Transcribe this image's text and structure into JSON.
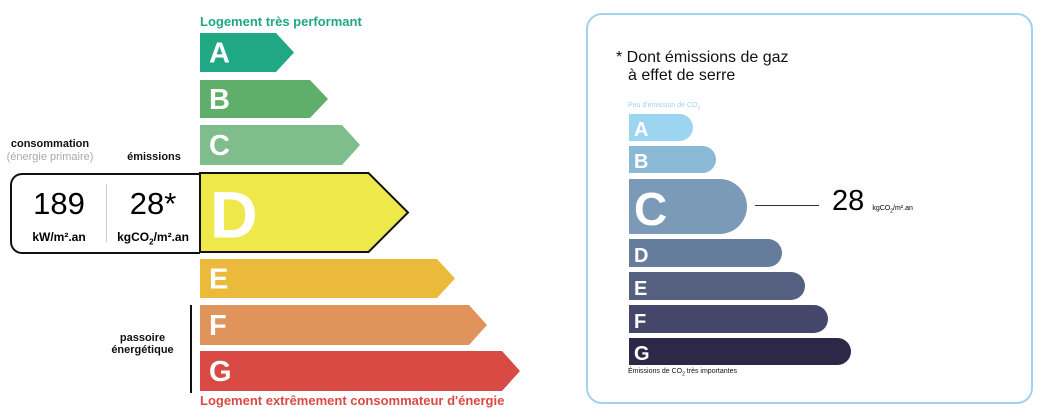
{
  "energy": {
    "top_label": "Logement très performant",
    "bottom_label": "Logement extrêmement consommateur d'énergie",
    "top_color": "#20a784",
    "bottom_color": "#d94a44",
    "classes": [
      {
        "letter": "A",
        "color": "#20a784"
      },
      {
        "letter": "B",
        "color": "#5fae6a"
      },
      {
        "letter": "C",
        "color": "#7fbd8c"
      },
      {
        "letter": "D",
        "color": "#eee84a"
      },
      {
        "letter": "E",
        "color": "#ebba3b"
      },
      {
        "letter": "F",
        "color": "#e0935b"
      },
      {
        "letter": "G",
        "color": "#d94a44"
      }
    ],
    "current_class": "D",
    "consumption_label": "consommation",
    "consumption_sub": "(énergie primaire)",
    "emissions_label": "émissions",
    "consumption_value": "189",
    "consumption_unit": "kW/m².an",
    "emissions_value": "28*",
    "emissions_unit_a": "kgCO",
    "emissions_unit_sub": "2",
    "emissions_unit_b": "/m².an",
    "passoire_1": "passoire",
    "passoire_2": "énergétique"
  },
  "ges": {
    "title_1": "* Dont émissions de gaz",
    "title_2": "à effet de serre",
    "top_label": "Peu d'émission de CO",
    "top_label_sub": "2",
    "bottom_label_a": "Émissions de CO",
    "bottom_label_sub": "2",
    "bottom_label_b": " très importantes",
    "classes": [
      {
        "letter": "A",
        "color": "#9dd5f0"
      },
      {
        "letter": "B",
        "color": "#89b9d4"
      },
      {
        "letter": "C",
        "color": "#7a9ab8"
      },
      {
        "letter": "D",
        "color": "#667c9c"
      },
      {
        "letter": "E",
        "color": "#555f80"
      },
      {
        "letter": "F",
        "color": "#44466a"
      },
      {
        "letter": "G",
        "color": "#2b2848"
      }
    ],
    "current_class": "C",
    "value": "28",
    "unit_a": "kgCO",
    "unit_sub": "2",
    "unit_b": "/m².an",
    "border_color": "#9fd3ee"
  }
}
